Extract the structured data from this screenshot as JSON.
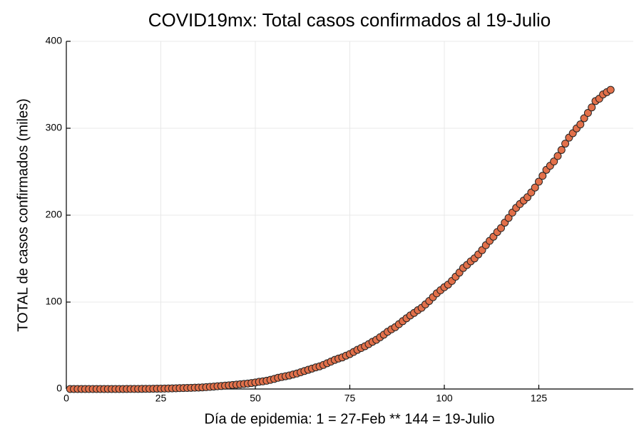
{
  "chart_data": {
    "type": "scatter",
    "title": "COVID19mx: Total casos confirmados al 19-Julio",
    "x_label": "Día de epidemia: 1 = 27-Feb ** 144 = 19-Julio",
    "y_label": "TOTAL de casos confirmados (miles)",
    "color": "#e2704a",
    "grid": true,
    "xlim": [
      0,
      150
    ],
    "ylim": [
      0,
      400
    ],
    "xticks": [
      0,
      25,
      50,
      75,
      100,
      125
    ],
    "yticks": [
      0,
      100,
      200,
      300,
      400
    ],
    "x": [
      1,
      2,
      3,
      4,
      5,
      6,
      7,
      8,
      9,
      10,
      11,
      12,
      13,
      14,
      15,
      16,
      17,
      18,
      19,
      20,
      21,
      22,
      23,
      24,
      25,
      26,
      27,
      28,
      29,
      30,
      31,
      32,
      33,
      34,
      35,
      36,
      37,
      38,
      39,
      40,
      41,
      42,
      43,
      44,
      45,
      46,
      47,
      48,
      49,
      50,
      51,
      52,
      53,
      54,
      55,
      56,
      57,
      58,
      59,
      60,
      61,
      62,
      63,
      64,
      65,
      66,
      67,
      68,
      69,
      70,
      71,
      72,
      73,
      74,
      75,
      76,
      77,
      78,
      79,
      80,
      81,
      82,
      83,
      84,
      85,
      86,
      87,
      88,
      89,
      90,
      91,
      92,
      93,
      94,
      95,
      96,
      97,
      98,
      99,
      100,
      101,
      102,
      103,
      104,
      105,
      106,
      107,
      108,
      109,
      110,
      111,
      112,
      113,
      114,
      115,
      116,
      117,
      118,
      119,
      120,
      121,
      122,
      123,
      124,
      125,
      126,
      127,
      128,
      129,
      130,
      131,
      132,
      133,
      134,
      135,
      136,
      137,
      138,
      139,
      140,
      141,
      142,
      143,
      144
    ],
    "values": [
      0.001,
      0.001,
      0.001,
      0.004,
      0.005,
      0.005,
      0.006,
      0.007,
      0.007,
      0.007,
      0.008,
      0.012,
      0.015,
      0.026,
      0.041,
      0.053,
      0.082,
      0.093,
      0.118,
      0.164,
      0.203,
      0.251,
      0.316,
      0.367,
      0.405,
      0.475,
      0.585,
      0.717,
      0.848,
      0.993,
      1.094,
      1.215,
      1.378,
      1.51,
      1.688,
      1.89,
      2.143,
      2.439,
      2.785,
      3.181,
      3.441,
      3.844,
      4.219,
      4.661,
      5.014,
      5.399,
      5.847,
      6.297,
      6.875,
      7.497,
      8.261,
      8.772,
      9.501,
      10.544,
      11.633,
      12.872,
      13.842,
      14.677,
      15.529,
      16.752,
      17.799,
      19.224,
      20.739,
      22.088,
      23.471,
      24.905,
      26.025,
      27.634,
      29.616,
      31.522,
      33.46,
      35.022,
      36.327,
      38.324,
      40.186,
      42.595,
      45.032,
      47.144,
      49.219,
      51.633,
      54.346,
      56.594,
      59.567,
      62.527,
      65.856,
      68.62,
      71.105,
      74.56,
      78.023,
      81.4,
      84.627,
      87.512,
      90.664,
      93.435,
      97.326,
      101.238,
      105.68,
      110.026,
      113.619,
      117.103,
      120.102,
      124.301,
      129.184,
      133.974,
      139.196,
      142.69,
      146.837,
      150.264,
      154.863,
      159.793,
      165.455,
      170.485,
      175.202,
      180.545,
      185.122,
      191.41,
      196.847,
      202.951,
      208.392,
      212.802,
      216.852,
      220.657,
      226.089,
      231.77,
      238.511,
      245.251,
      252.165,
      256.848,
      261.75,
      268.008,
      275.0,
      282.3,
      289.2,
      294.3,
      299.8,
      304.4,
      311.5,
      317.6,
      324.0,
      331.3,
      334.0,
      338.9,
      341.5,
      344.2
    ]
  }
}
